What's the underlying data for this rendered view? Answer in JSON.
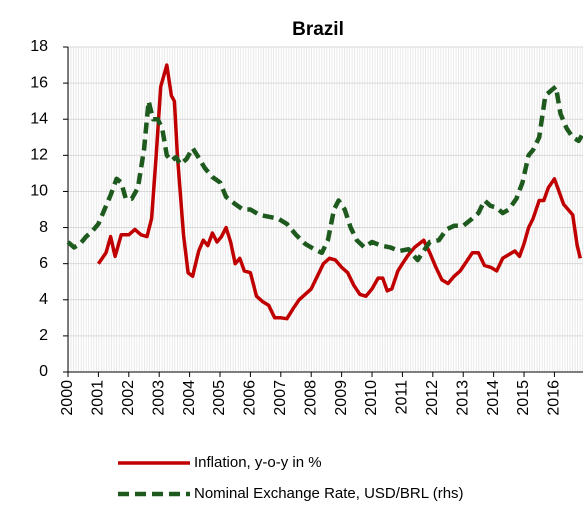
{
  "chart_data": {
    "type": "line",
    "title": "Brazil",
    "xlim": [
      2000,
      2016.94
    ],
    "xticks": [
      2000,
      2001,
      2002,
      2003,
      2004,
      2005,
      2006,
      2007,
      2008,
      2009,
      2010,
      2011,
      2012,
      2013,
      2014,
      2015,
      2016
    ],
    "ylim": [
      0,
      18
    ],
    "yticks": [
      0,
      2,
      4,
      6,
      8,
      10,
      12,
      14,
      16,
      18
    ],
    "grid": true,
    "series": [
      {
        "name": "Inflation, y-o-y in %",
        "color": "#c00000",
        "dash": false,
        "x": [
          2001.0,
          2001.25,
          2001.4,
          2001.55,
          2001.75,
          2002.0,
          2002.2,
          2002.4,
          2002.6,
          2002.75,
          2002.9,
          2003.05,
          2003.25,
          2003.4,
          2003.5,
          2003.6,
          2003.8,
          2003.95,
          2004.1,
          2004.3,
          2004.45,
          2004.6,
          2004.75,
          2004.9,
          2005.05,
          2005.2,
          2005.35,
          2005.5,
          2005.65,
          2005.8,
          2006.0,
          2006.2,
          2006.4,
          2006.6,
          2006.8,
          2007.0,
          2007.2,
          2007.4,
          2007.6,
          2007.8,
          2008.0,
          2008.2,
          2008.4,
          2008.6,
          2008.8,
          2009.0,
          2009.2,
          2009.4,
          2009.6,
          2009.8,
          2010.0,
          2010.2,
          2010.35,
          2010.5,
          2010.65,
          2010.85,
          2011.0,
          2011.2,
          2011.4,
          2011.7,
          2011.9,
          2012.1,
          2012.3,
          2012.5,
          2012.7,
          2012.9,
          2013.1,
          2013.3,
          2013.5,
          2013.7,
          2013.9,
          2014.1,
          2014.3,
          2014.5,
          2014.7,
          2014.85,
          2015.0,
          2015.15,
          2015.3,
          2015.5,
          2015.65,
          2015.8,
          2016.0,
          2016.15,
          2016.3,
          2016.45,
          2016.6,
          2016.75,
          2016.85
        ],
        "values": [
          6.0,
          6.6,
          7.5,
          6.4,
          7.6,
          7.6,
          7.9,
          7.6,
          7.5,
          8.5,
          12,
          15.8,
          17.0,
          15.3,
          15.0,
          12,
          7.6,
          5.5,
          5.3,
          6.7,
          7.3,
          7.0,
          7.7,
          7.2,
          7.5,
          8.0,
          7.2,
          6.0,
          6.3,
          5.6,
          5.5,
          4.2,
          3.9,
          3.7,
          3.0,
          3.0,
          2.95,
          3.5,
          4.0,
          4.3,
          4.6,
          5.3,
          6.0,
          6.3,
          6.2,
          5.8,
          5.5,
          4.8,
          4.3,
          4.2,
          4.6,
          5.2,
          5.2,
          4.5,
          4.6,
          5.6,
          6.0,
          6.5,
          6.9,
          7.3,
          6.6,
          5.8,
          5.1,
          4.9,
          5.3,
          5.6,
          6.1,
          6.6,
          6.6,
          5.9,
          5.8,
          5.6,
          6.3,
          6.5,
          6.7,
          6.4,
          7.1,
          8.0,
          8.5,
          9.5,
          9.5,
          10.2,
          10.7,
          10.0,
          9.3,
          9.0,
          8.7,
          7.0,
          6.3
        ]
      },
      {
        "name": "Nominal Exchange Rate, USD/BRL (rhs)",
        "color": "#1e5a1e",
        "dash": true,
        "x": [
          2000.0,
          2000.2,
          2000.4,
          2000.6,
          2000.8,
          2001.0,
          2001.2,
          2001.4,
          2001.6,
          2001.75,
          2001.9,
          2002.1,
          2002.3,
          2002.5,
          2002.65,
          2002.8,
          2002.95,
          2003.1,
          2003.25,
          2003.4,
          2003.55,
          2003.7,
          2003.9,
          2004.1,
          2004.25,
          2004.5,
          2004.75,
          2005.0,
          2005.2,
          2005.5,
          2005.75,
          2006.0,
          2006.3,
          2006.6,
          2006.9,
          2007.2,
          2007.5,
          2007.8,
          2008.1,
          2008.35,
          2008.55,
          2008.75,
          2008.9,
          2009.1,
          2009.3,
          2009.5,
          2009.75,
          2010.0,
          2010.3,
          2010.6,
          2010.9,
          2011.2,
          2011.5,
          2011.7,
          2011.9,
          2012.2,
          2012.45,
          2012.7,
          2013.0,
          2013.3,
          2013.5,
          2013.7,
          2013.9,
          2014.1,
          2014.3,
          2014.5,
          2014.75,
          2014.95,
          2015.15,
          2015.3,
          2015.5,
          2015.7,
          2015.9,
          2016.05,
          2016.2,
          2016.4,
          2016.6,
          2016.8,
          2016.9
        ],
        "values": [
          7.2,
          6.9,
          7.1,
          7.5,
          7.8,
          8.2,
          9.0,
          9.8,
          10.7,
          10.5,
          9.6,
          9.6,
          10.2,
          12.3,
          15.0,
          14.0,
          14.0,
          13.5,
          12.0,
          11.7,
          11.9,
          11.5,
          11.8,
          12.4,
          12.0,
          11.3,
          10.8,
          10.5,
          9.7,
          9.3,
          9.0,
          9.0,
          8.7,
          8.6,
          8.5,
          8.2,
          7.6,
          7.1,
          6.8,
          6.6,
          7.3,
          9.0,
          9.5,
          9.0,
          8.0,
          7.3,
          6.9,
          7.2,
          7.0,
          6.9,
          6.7,
          6.8,
          6.2,
          6.7,
          7.2,
          7.3,
          7.9,
          8.1,
          8.1,
          8.5,
          8.8,
          9.5,
          9.2,
          9.1,
          8.8,
          9.0,
          9.6,
          10.5,
          12.0,
          12.3,
          13.0,
          15.3,
          15.6,
          15.8,
          14.3,
          13.5,
          13.0,
          12.8,
          13.1
        ]
      }
    ]
  }
}
